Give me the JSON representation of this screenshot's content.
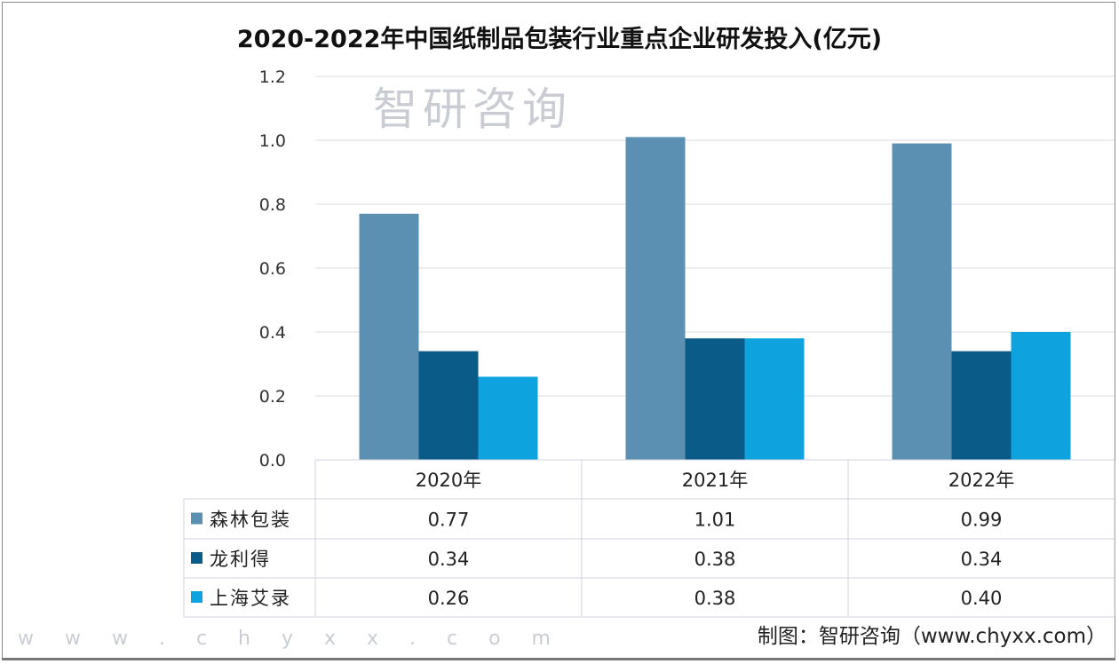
{
  "chart_data": {
    "type": "bar",
    "title": "2020-2022年中国纸制品包装行业重点企业研发投入(亿元)",
    "categories": [
      "2020年",
      "2021年",
      "2022年"
    ],
    "series": [
      {
        "name": "森林包装",
        "values": [
          0.77,
          1.01,
          0.99
        ],
        "color": "#5b90b2"
      },
      {
        "name": "龙利得",
        "values": [
          0.34,
          0.38,
          0.34
        ],
        "color": "#0b5b88"
      },
      {
        "name": "上海艾录",
        "values": [
          0.26,
          0.38,
          0.4
        ],
        "color": "#0ea3df"
      }
    ],
    "value_labels": [
      [
        "0.77",
        "1.01",
        "0.99"
      ],
      [
        "0.34",
        "0.38",
        "0.34"
      ],
      [
        "0.26",
        "0.38",
        "0.40"
      ]
    ],
    "ylim": [
      0,
      1.2
    ],
    "yticks": [
      "0.0",
      "0.2",
      "0.4",
      "0.6",
      "0.8",
      "1.0",
      "1.2"
    ],
    "grid": true,
    "legend": "data-table"
  },
  "watermark": {
    "name": "智研咨询",
    "url": "w w w . c h y x x . c o m"
  },
  "source": "制图：智研咨询（www.chyxx.com）"
}
